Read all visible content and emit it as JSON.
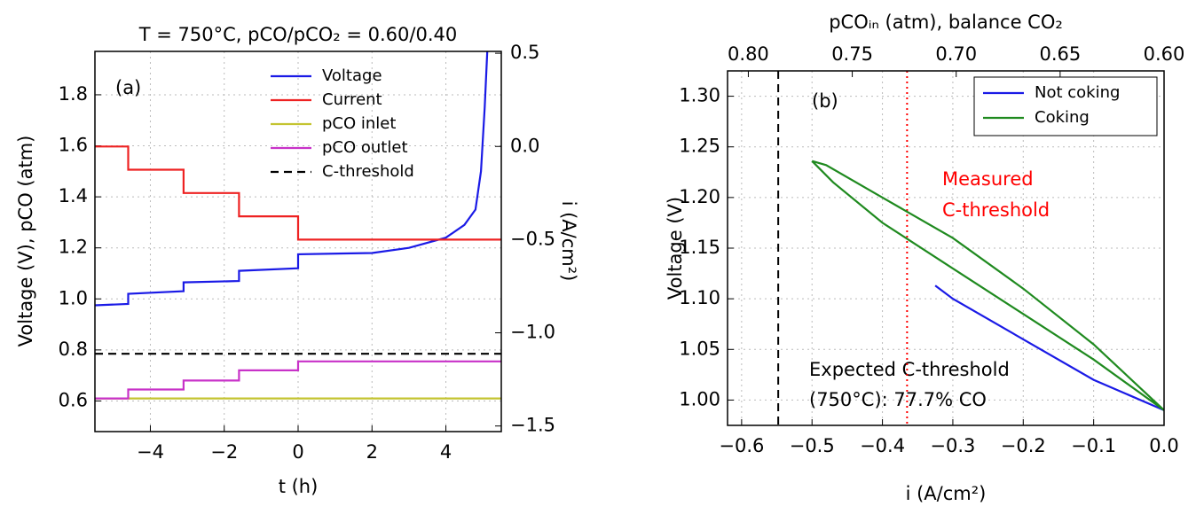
{
  "chart_data": [
    {
      "type": "line",
      "title": "T = 750°C, pCO/pCO₂ = 0.60/0.40",
      "annotation": "(a)",
      "xlabel": "t (h)",
      "ylabel": "Voltage (V), pCO (atm)",
      "y2label": "i (A/cm²)",
      "xlim": [
        -5.5,
        5.5
      ],
      "ylim": [
        0.48,
        1.97
      ],
      "y2lim": [
        -1.53,
        0.51
      ],
      "xticks": [
        {
          "value": -4,
          "label": "−4"
        },
        {
          "value": -2,
          "label": "−2"
        },
        0,
        2,
        4
      ],
      "yticks": [
        0.6,
        0.8,
        {
          "value": 1,
          "label": "1.0"
        },
        1.2,
        1.4,
        1.6,
        1.8
      ],
      "y2ticks": [
        {
          "value": -1.5,
          "label": "−1.5"
        },
        {
          "value": -1,
          "label": "−1.0"
        },
        {
          "value": -0.5,
          "label": "−0.5"
        },
        {
          "value": 0,
          "label": "0.0"
        },
        0.5
      ],
      "grid": true,
      "legend": "upper center",
      "series": [
        {
          "name": "Voltage",
          "color": "#1a1ae6",
          "linestyle": "solid",
          "x": [
            -5.5,
            -4.6,
            -4.6,
            -3.1,
            -3.1,
            -1.6,
            -1.6,
            0,
            0,
            2,
            3,
            4,
            4.5,
            4.8,
            4.95,
            5.05,
            5.12
          ],
          "values": [
            0.975,
            0.98,
            1.02,
            1.03,
            1.065,
            1.07,
            1.11,
            1.12,
            1.175,
            1.18,
            1.2,
            1.24,
            1.29,
            1.35,
            1.5,
            1.75,
            1.97
          ]
        },
        {
          "name": "Current",
          "color": "#ee2222",
          "linestyle": "solid",
          "axis": "y2",
          "x": [
            -5.5,
            -4.6,
            -4.6,
            -3.1,
            -3.1,
            -1.6,
            -1.6,
            0,
            0,
            5.5
          ],
          "values": [
            0,
            0,
            -0.125,
            -0.125,
            -0.25,
            -0.25,
            -0.375,
            -0.375,
            -0.5,
            -0.5
          ]
        },
        {
          "name": "pCO inlet",
          "color": "#c4c430",
          "linestyle": "solid",
          "x": [
            -5.5,
            5.5
          ],
          "values": [
            0.61,
            0.61
          ]
        },
        {
          "name": "pCO outlet",
          "color": "#c832c8",
          "linestyle": "solid",
          "x": [
            -5.5,
            -4.6,
            -4.6,
            -3.1,
            -3.1,
            -1.6,
            -1.6,
            0,
            0,
            5.5
          ],
          "values": [
            0.61,
            0.61,
            0.645,
            0.645,
            0.68,
            0.68,
            0.72,
            0.72,
            0.755,
            0.755
          ]
        },
        {
          "name": "C-threshold",
          "color": "#000000",
          "linestyle": "dashed",
          "x": [
            -5.5,
            5.5
          ],
          "values": [
            0.785,
            0.785
          ]
        }
      ]
    },
    {
      "type": "line",
      "annotation": "(b)",
      "xlabel": "i (A/cm²)",
      "ylabel": "Voltage (V)",
      "x2label": "pCOᵢₙ (atm), balance CO₂",
      "xlim": [
        -0.62,
        0
      ],
      "ylim": [
        0.975,
        1.325
      ],
      "x2lim": [
        0.81,
        0.6
      ],
      "xticks": [
        {
          "value": -0.6,
          "label": "−0.6"
        },
        {
          "value": -0.5,
          "label": "−0.5"
        },
        {
          "value": -0.4,
          "label": "−0.4"
        },
        {
          "value": -0.3,
          "label": "−0.3"
        },
        {
          "value": -0.2,
          "label": "−0.2"
        },
        {
          "value": -0.1,
          "label": "−0.1"
        },
        {
          "value": 0,
          "label": "0.0"
        }
      ],
      "yticks": [
        {
          "value": 1,
          "label": "1.00"
        },
        1.05,
        {
          "value": 1.1,
          "label": "1.10"
        },
        1.15,
        {
          "value": 1.2,
          "label": "1.20"
        },
        1.25,
        {
          "value": 1.3,
          "label": "1.30"
        }
      ],
      "x2ticks": [
        {
          "value": 0.8,
          "label": "0.80"
        },
        0.75,
        {
          "value": 0.7,
          "label": "0.70"
        },
        0.65,
        {
          "value": 0.6,
          "label": "0.60"
        }
      ],
      "grid": true,
      "legend": "upper right",
      "series": [
        {
          "name": "Not coking",
          "color": "#1a1ae6",
          "linestyle": "solid",
          "x": [
            -0.325,
            -0.3,
            -0.2,
            -0.1,
            0
          ],
          "values": [
            1.113,
            1.1,
            1.06,
            1.02,
            0.99
          ]
        },
        {
          "name": "Coking",
          "color": "#1f8a1f",
          "linestyle": "solid",
          "x": [
            -0.5,
            -0.48,
            -0.4,
            -0.3,
            -0.2,
            -0.1,
            0,
            -0.1,
            -0.2,
            -0.3,
            -0.4,
            -0.47,
            -0.5
          ],
          "values": [
            1.236,
            1.232,
            1.2,
            1.16,
            1.11,
            1.055,
            0.99,
            1.04,
            1.085,
            1.13,
            1.175,
            1.215,
            1.236
          ]
        }
      ],
      "vlines": [
        {
          "x": -0.548,
          "color": "#000000",
          "linestyle": "dashed",
          "text": [
            "Expected C-threshold",
            "(750°C): 77.7% CO"
          ],
          "text_color": "#000000"
        },
        {
          "x": -0.365,
          "color": "#ff0000",
          "linestyle": "dotted",
          "text": [
            "Measured",
            "C-threshold"
          ],
          "text_color": "#ff0000"
        }
      ]
    }
  ]
}
